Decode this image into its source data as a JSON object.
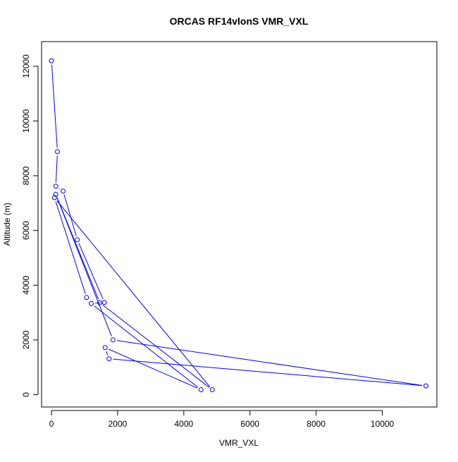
{
  "chart_data": {
    "type": "line",
    "title": "ORCAS RF14vlonS VMR_VXL",
    "xlabel": "VMR_VXL",
    "ylabel": "Altitude (m)",
    "xlim": [
      -300,
      11650
    ],
    "ylim": [
      -450,
      12900
    ],
    "xticks": [
      0,
      2000,
      4000,
      6000,
      8000,
      10000
    ],
    "yticks": [
      0,
      2000,
      4000,
      6000,
      8000,
      10000,
      12000
    ],
    "grid": false,
    "color": "#0000ff",
    "series": [
      {
        "x": [
          0,
          180,
          130,
          350,
          780,
          1600,
          1200,
          4520,
          1620,
          1740,
          11320,
          1860,
          130,
          1460,
          4860,
          90,
          1060
        ],
        "y": [
          12200,
          8880,
          7620,
          7440,
          5660,
          3370,
          3330,
          180,
          1720,
          1310,
          320,
          2000,
          7320,
          3360,
          180,
          7200,
          3550
        ]
      }
    ]
  }
}
